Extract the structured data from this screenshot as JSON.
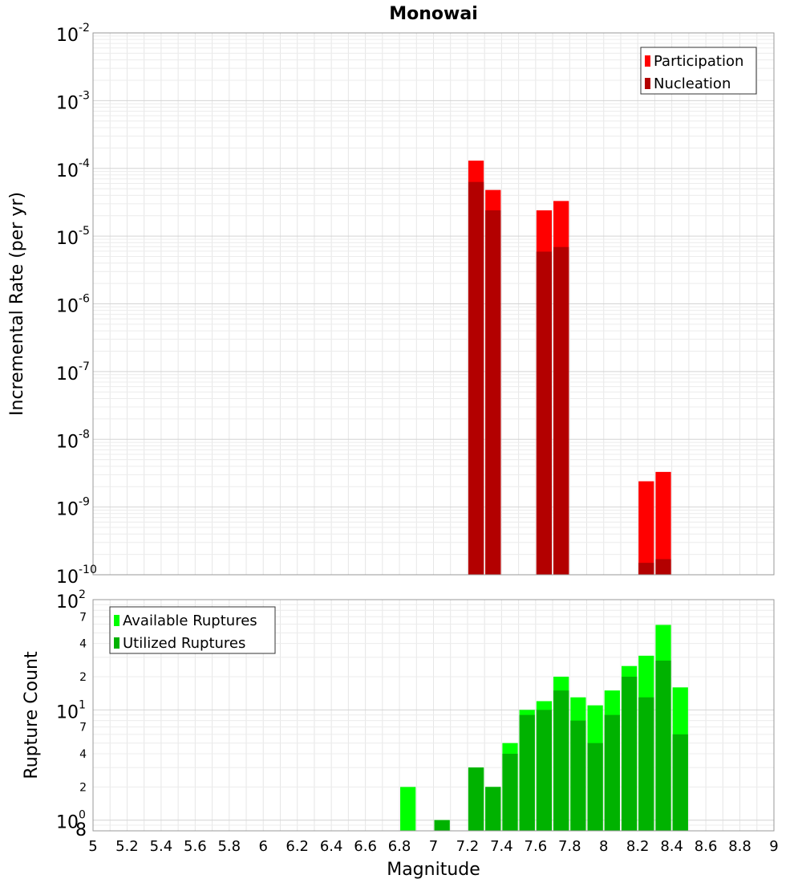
{
  "chart_data": [
    {
      "type": "bar",
      "title": "Monowai",
      "ylabel": "Incremental Rate (per yr)",
      "xlabel": "",
      "yscale": "log",
      "xlim": [
        5,
        9
      ],
      "ylim": [
        1e-10,
        0.01
      ],
      "grid": true,
      "legend_position": "top-right",
      "y_ticks": [
        {
          "base": "10",
          "exp": "-2",
          "value": 0.01
        },
        {
          "base": "10",
          "exp": "-3",
          "value": 0.001
        },
        {
          "base": "10",
          "exp": "-4",
          "value": 0.0001
        },
        {
          "base": "10",
          "exp": "-5",
          "value": 1e-05
        },
        {
          "base": "10",
          "exp": "-6",
          "value": 1e-06
        },
        {
          "base": "10",
          "exp": "-7",
          "value": 1e-07
        },
        {
          "base": "10",
          "exp": "-8",
          "value": 1e-08
        },
        {
          "base": "10",
          "exp": "-9",
          "value": 1e-09
        },
        {
          "base": "10",
          "exp": "-10",
          "value": 1e-10
        }
      ],
      "series": [
        {
          "name": "Participation",
          "color": "#ff0000",
          "x": [
            7.25,
            7.35,
            7.65,
            7.75,
            8.25,
            8.35
          ],
          "values": [
            0.00013,
            4.8e-05,
            2.4e-05,
            3.3e-05,
            2.4e-09,
            3.3e-09
          ]
        },
        {
          "name": "Nucleation",
          "color": "#b30000",
          "x": [
            7.25,
            7.35,
            7.65,
            7.75,
            8.25,
            8.35
          ],
          "values": [
            6.3e-05,
            2.4e-05,
            5.9e-06,
            6.9e-06,
            1.5e-10,
            1.7e-10
          ]
        }
      ]
    },
    {
      "type": "bar",
      "title": "",
      "ylabel": "Rupture Count",
      "xlabel": "Magnitude",
      "yscale": "log",
      "xlim": [
        5,
        9
      ],
      "ylim": [
        0.8,
        100
      ],
      "grid": true,
      "legend_position": "top-left",
      "x_ticks": [
        "5",
        "5.2",
        "5.4",
        "5.6",
        "5.8",
        "6",
        "6.2",
        "6.4",
        "6.6",
        "6.8",
        "7",
        "7.2",
        "7.4",
        "7.6",
        "7.8",
        "8",
        "8.2",
        "8.4",
        "8.6",
        "8.8",
        "9"
      ],
      "y_major_ticks": [
        {
          "base": "10",
          "exp": "2",
          "value": 100
        },
        {
          "base": "10",
          "exp": "1",
          "value": 10
        },
        {
          "base": "10",
          "exp": "0",
          "value": 1
        }
      ],
      "y_minor_ticks": [
        {
          "label": "7",
          "value": 70
        },
        {
          "label": "4",
          "value": 40
        },
        {
          "label": "2",
          "value": 20
        },
        {
          "label": "7",
          "value": 7
        },
        {
          "label": "4",
          "value": 4
        },
        {
          "label": "2",
          "value": 2
        },
        {
          "label": "8",
          "value": 0.8
        }
      ],
      "series": [
        {
          "name": "Available Ruptures",
          "color": "#00ff00",
          "x": [
            6.85,
            7.05,
            7.25,
            7.35,
            7.45,
            7.55,
            7.65,
            7.75,
            7.85,
            7.95,
            8.05,
            8.15,
            8.25,
            8.35,
            8.45
          ],
          "values": [
            2,
            1,
            3,
            2,
            5,
            10,
            12,
            20,
            13,
            11,
            15,
            25,
            31,
            59,
            16
          ]
        },
        {
          "name": "Utilized Ruptures",
          "color": "#00b200",
          "x": [
            6.85,
            7.05,
            7.25,
            7.35,
            7.45,
            7.55,
            7.65,
            7.75,
            7.85,
            7.95,
            8.05,
            8.15,
            8.25,
            8.35,
            8.45
          ],
          "values": [
            0,
            1,
            3,
            2,
            4,
            9,
            10,
            15,
            8,
            5,
            9,
            20,
            13,
            28,
            6
          ]
        }
      ]
    }
  ]
}
